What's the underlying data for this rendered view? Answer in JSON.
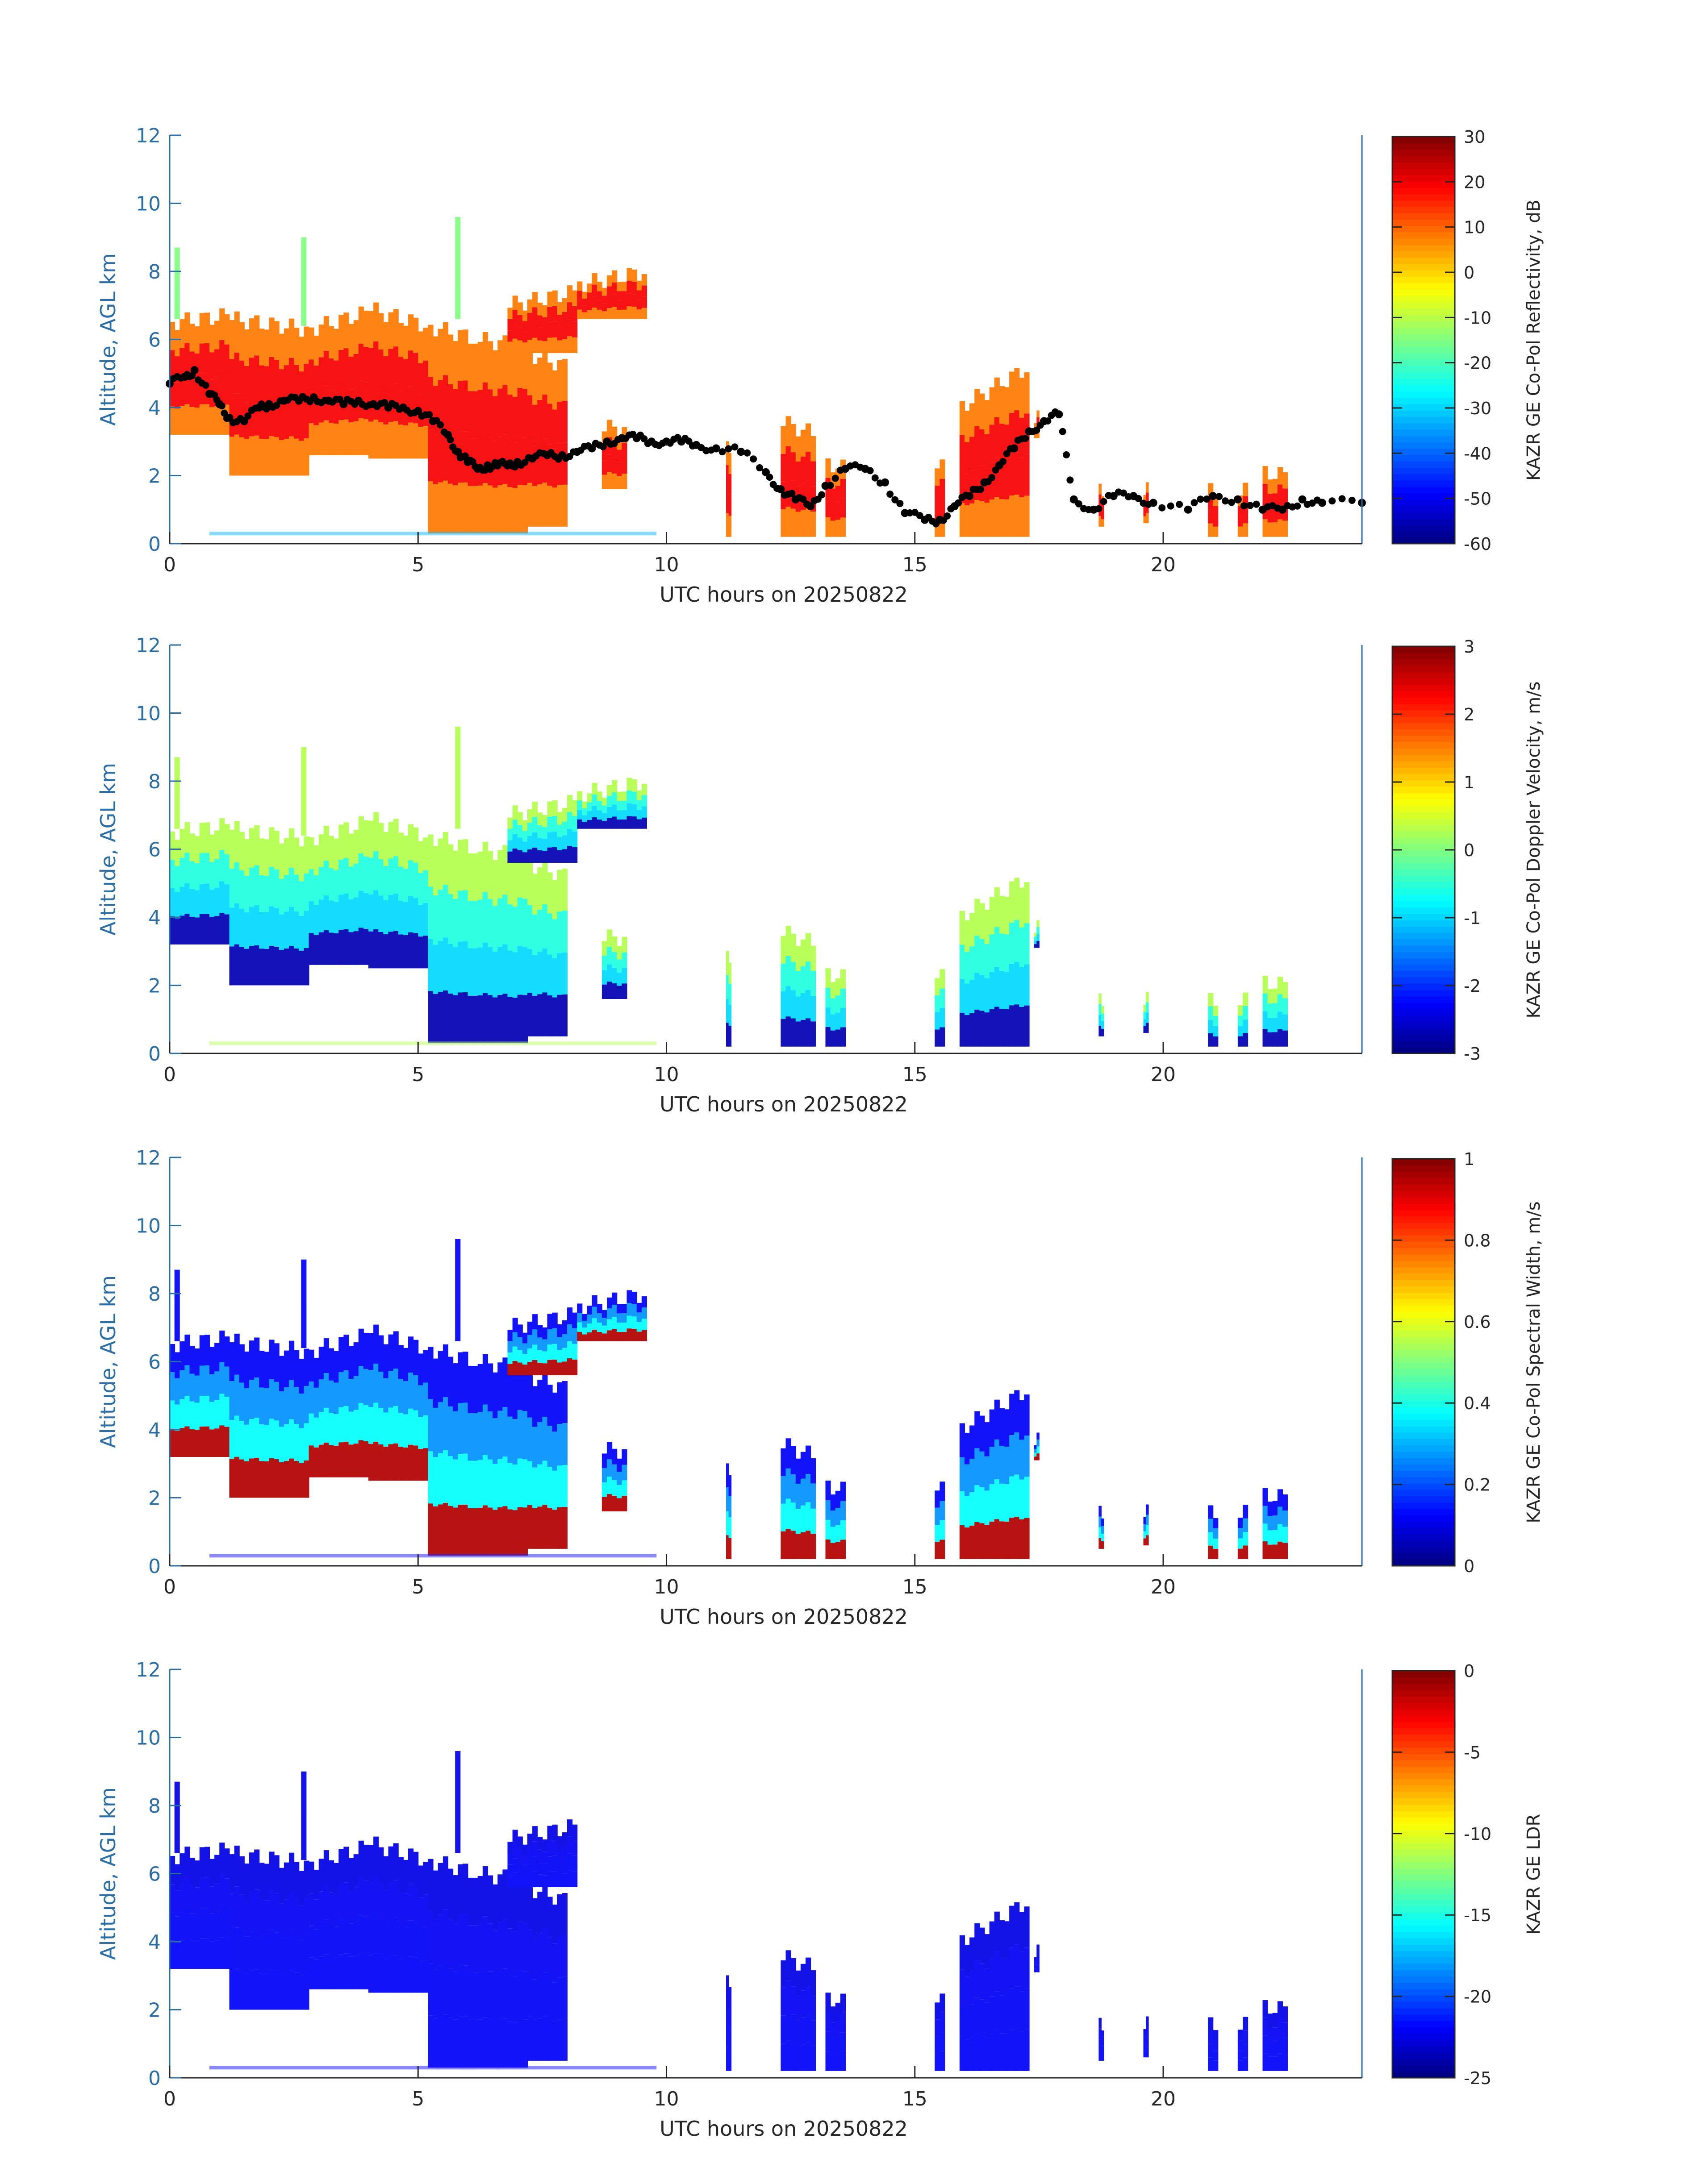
{
  "figure": {
    "colors": {
      "axis_blue": "#2b6fa6",
      "axis_black": "#262626",
      "panel_border": "#2b6fa6",
      "cbar_border": "#262626",
      "cloud_base_points": "#000000"
    },
    "colormap": "jet"
  },
  "chart_data": [
    {
      "type": "heatmap",
      "name": "reflectivity",
      "xlabel": "UTC hours on 20250822",
      "ylabel": "Altitude, AGL km",
      "xlim": [
        0,
        24
      ],
      "ylim": [
        0,
        12
      ],
      "xticks": [
        "0",
        "5",
        "10",
        "15",
        "20"
      ],
      "yticks": [
        "0",
        "2",
        "4",
        "6",
        "8",
        "10",
        "12"
      ],
      "colorbar": {
        "label": "KAZR GE Co-Pol Reflectivity, dB",
        "range": [
          -60,
          30
        ],
        "ticks": [
          "30",
          "20",
          "10",
          "0",
          "-10",
          "-20",
          "-30",
          "-40",
          "-50",
          "-60"
        ]
      },
      "cloud_base_series": {
        "x": [
          0,
          0.3,
          0.5,
          0.8,
          1.0,
          1.2,
          1.5,
          1.8,
          2.0,
          2.3,
          2.6,
          2.9,
          3.2,
          3.5,
          3.8,
          4.1,
          4.4,
          4.7,
          5.0,
          5.3,
          5.6,
          5.8,
          6.0,
          6.2,
          6.4,
          6.6,
          6.8,
          7.0,
          7.3,
          7.6,
          7.9,
          8.2,
          8.5,
          8.8,
          9.1,
          9.4,
          9.7,
          10.0,
          10.3,
          10.6,
          11.0,
          11.5,
          12.0,
          12.3,
          12.6,
          12.9,
          13.2,
          13.6,
          14.0,
          14.4,
          14.8,
          15.2,
          15.5,
          15.8,
          16.1,
          16.4,
          16.7,
          17.0,
          17.3,
          17.6,
          17.9,
          18.2,
          18.6,
          19.0,
          19.4,
          19.8,
          20.5,
          21.0,
          21.5,
          22.0,
          22.4,
          22.8,
          23.2,
          24.0
        ],
        "y": [
          4.7,
          4.9,
          5.1,
          4.4,
          4.1,
          3.7,
          3.6,
          4.0,
          4.1,
          4.2,
          4.2,
          4.3,
          4.2,
          4.1,
          4.2,
          4.1,
          4.0,
          4.0,
          3.9,
          3.6,
          3.2,
          2.7,
          2.4,
          2.2,
          2.3,
          2.3,
          2.3,
          2.4,
          2.5,
          2.6,
          2.6,
          2.7,
          2.8,
          3.0,
          3.1,
          3.1,
          3.0,
          3.0,
          3.0,
          2.9,
          2.8,
          2.7,
          2.1,
          1.6,
          1.3,
          1.1,
          1.7,
          2.2,
          2.2,
          1.8,
          0.9,
          0.7,
          0.7,
          1.1,
          1.4,
          1.8,
          2.3,
          2.8,
          3.3,
          3.6,
          3.8,
          1.3,
          1.0,
          1.4,
          1.4,
          1.2,
          1.0,
          1.4,
          1.3,
          1.0,
          1.0,
          1.3,
          1.2,
          1.2
        ]
      }
    },
    {
      "type": "heatmap",
      "name": "doppler_velocity",
      "xlabel": "UTC hours on 20250822",
      "ylabel": "Altitude, AGL km",
      "xlim": [
        0,
        24
      ],
      "ylim": [
        0,
        12
      ],
      "xticks": [
        "0",
        "5",
        "10",
        "15",
        "20"
      ],
      "yticks": [
        "0",
        "2",
        "4",
        "6",
        "8",
        "10",
        "12"
      ],
      "colorbar": {
        "label": "KAZR GE Co-Pol Doppler Velocity, m/s",
        "range": [
          -3,
          3
        ],
        "ticks": [
          "3",
          "2",
          "1",
          "0",
          "-1",
          "-2",
          "-3"
        ]
      }
    },
    {
      "type": "heatmap",
      "name": "spectral_width",
      "xlabel": "UTC hours on 20250822",
      "ylabel": "Altitude, AGL km",
      "xlim": [
        0,
        24
      ],
      "ylim": [
        0,
        12
      ],
      "xticks": [
        "0",
        "5",
        "10",
        "15",
        "20"
      ],
      "yticks": [
        "0",
        "2",
        "4",
        "6",
        "8",
        "10",
        "12"
      ],
      "colorbar": {
        "label": "KAZR GE Co-Pol Spectral Width, m/s",
        "range": [
          0,
          1
        ],
        "ticks": [
          "1",
          "0.8",
          "0.6",
          "0.4",
          "0.2",
          "0"
        ]
      }
    },
    {
      "type": "heatmap",
      "name": "ldr",
      "xlabel": "UTC hours on 20250822",
      "ylabel": "Altitude, AGL km",
      "xlim": [
        0,
        24
      ],
      "ylim": [
        0,
        12
      ],
      "xticks": [
        "0",
        "5",
        "10",
        "15",
        "20"
      ],
      "yticks": [
        "0",
        "2",
        "4",
        "6",
        "8",
        "10",
        "12"
      ],
      "colorbar": {
        "label": "KAZR GE LDR",
        "range": [
          -25,
          0
        ],
        "ticks": [
          "0",
          "-5",
          "-10",
          "-15",
          "-20",
          "-25"
        ]
      }
    }
  ]
}
